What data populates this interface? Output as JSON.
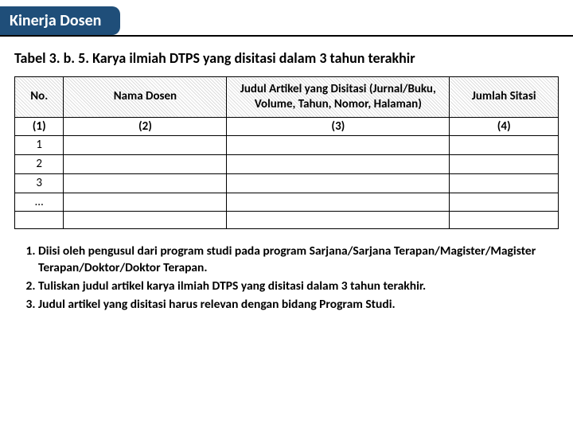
{
  "header": {
    "tab": "Kinerja Dosen"
  },
  "caption": "Tabel 3. b. 5. Karya ilmiah DTPS yang disitasi dalam 3 tahun terakhir",
  "table": {
    "headers": {
      "c1": "No.",
      "c2": "Nama Dosen",
      "c3": "Judul Artikel yang Disitasi (Jurnal/Buku, Volume, Tahun, Nomor, Halaman)",
      "c4": "Jumlah Sitasi"
    },
    "index_row": {
      "c1": "(1)",
      "c2": "(2)",
      "c3": "(3)",
      "c4": "(4)"
    },
    "rows": [
      {
        "c1": "1",
        "c2": "",
        "c3": "",
        "c4": ""
      },
      {
        "c1": "2",
        "c2": "",
        "c3": "",
        "c4": ""
      },
      {
        "c1": "3",
        "c2": "",
        "c3": "",
        "c4": ""
      },
      {
        "c1": "…",
        "c2": "",
        "c3": "",
        "c4": ""
      }
    ]
  },
  "notes": [
    "Diisi oleh pengusul dari program studi pada program Sarjana/Sarjana Terapan/Magister/Magister Terapan/Doktor/Doktor Terapan.",
    "Tuliskan judul artikel karya ilmiah DTPS yang disitasi dalam 3 tahun terakhir.",
    "Judul artikel yang disitasi harus relevan dengan bidang Program Studi."
  ]
}
